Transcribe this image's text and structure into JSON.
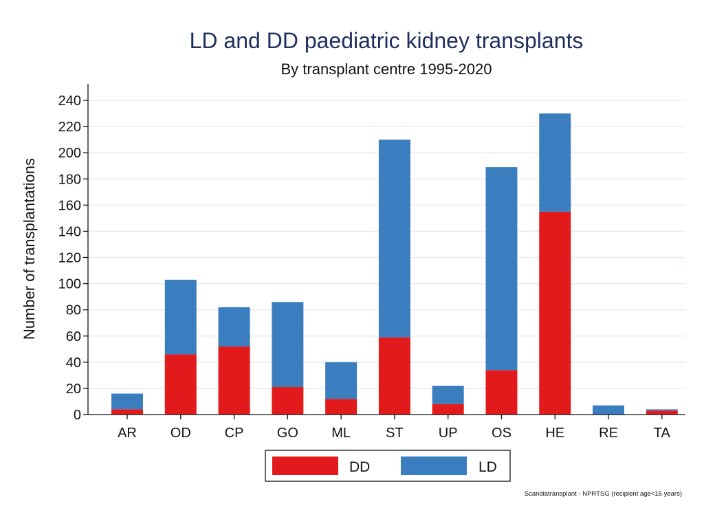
{
  "chart_data": {
    "type": "bar",
    "stacked": true,
    "title": "LD and DD paediatric kidney transplants",
    "subtitle": "By transplant centre 1995-2020",
    "xlabel": "",
    "ylabel": "Number of transplantations",
    "ylim": [
      0,
      240
    ],
    "yticks": [
      0,
      20,
      40,
      60,
      80,
      100,
      120,
      140,
      160,
      180,
      200,
      220,
      240
    ],
    "grid": true,
    "categories": [
      "AR",
      "OD",
      "CP",
      "GO",
      "ML",
      "ST",
      "UP",
      "OS",
      "HE",
      "RE",
      "TA"
    ],
    "series": [
      {
        "name": "DD",
        "color": "#e31a1c",
        "values": [
          4,
          46,
          52,
          21,
          12,
          59,
          8,
          34,
          155,
          0,
          3
        ]
      },
      {
        "name": "LD",
        "color": "#3a7ebf",
        "values": [
          12,
          57,
          30,
          65,
          28,
          151,
          14,
          155,
          75,
          7,
          1
        ]
      }
    ],
    "legend": "bottom-center",
    "note": "Scandiatransplant - NPRTSG (recipient age<16 years)"
  }
}
